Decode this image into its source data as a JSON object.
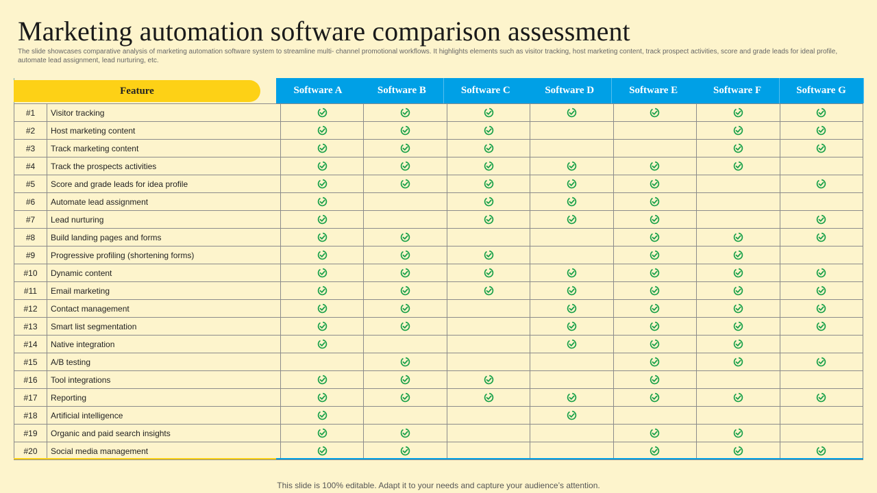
{
  "title": "Marketing automation software comparison assessment",
  "subtitle": "The slide showcases comparative analysis of marketing automation  software system to streamline multi- channel promotional workflows. It highlights elements such as visitor tracking, host marketing content, track prospect activities, score and grade leads for ideal profile, automate lead assignment, lead nurturing, etc.",
  "footer": "This slide is 100% editable. Adapt it to your needs and capture your audience’s attention.",
  "colors": {
    "feature_header": "#fdd116",
    "software_header": "#00a0e6",
    "check": "#1aa14a",
    "background": "#fdf4cc"
  },
  "check_icon": "circle-check-icon",
  "table": {
    "feature_header": "Feature",
    "software": [
      "Software A",
      "Software B",
      "Software C",
      "Software D",
      "Software E",
      "Software F",
      "Software G"
    ],
    "rows": [
      {
        "num": "#1",
        "feature": "Visitor tracking",
        "checks": [
          1,
          1,
          1,
          1,
          1,
          1,
          1
        ]
      },
      {
        "num": "#2",
        "feature": "Host marketing content",
        "checks": [
          1,
          1,
          1,
          0,
          0,
          1,
          1
        ]
      },
      {
        "num": "#3",
        "feature": "Track marketing content",
        "checks": [
          1,
          1,
          1,
          0,
          0,
          1,
          1
        ]
      },
      {
        "num": "#4",
        "feature": "Track the prospects activities",
        "checks": [
          1,
          1,
          1,
          1,
          1,
          1,
          0
        ]
      },
      {
        "num": "#5",
        "feature": "Score and grade leads for idea profile",
        "checks": [
          1,
          1,
          1,
          1,
          1,
          0,
          1
        ]
      },
      {
        "num": "#6",
        "feature": "Automate lead assignment",
        "checks": [
          1,
          0,
          1,
          1,
          1,
          0,
          0
        ]
      },
      {
        "num": "#7",
        "feature": "Lead nurturing",
        "checks": [
          1,
          0,
          1,
          1,
          1,
          0,
          1
        ]
      },
      {
        "num": "#8",
        "feature": "Build landing pages and forms",
        "checks": [
          1,
          1,
          0,
          0,
          1,
          1,
          1
        ]
      },
      {
        "num": "#9",
        "feature": "Progressive profiling (shortening forms)",
        "checks": [
          1,
          1,
          1,
          0,
          1,
          1,
          0
        ]
      },
      {
        "num": "#10",
        "feature": "Dynamic content",
        "checks": [
          1,
          1,
          1,
          1,
          1,
          1,
          1
        ]
      },
      {
        "num": "#11",
        "feature": "Email marketing",
        "checks": [
          1,
          1,
          1,
          1,
          1,
          1,
          1
        ]
      },
      {
        "num": "#12",
        "feature": "Contact management",
        "checks": [
          1,
          1,
          0,
          1,
          1,
          1,
          1
        ]
      },
      {
        "num": "#13",
        "feature": "Smart list segmentation",
        "checks": [
          1,
          1,
          0,
          1,
          1,
          1,
          1
        ]
      },
      {
        "num": "#14",
        "feature": "Native integration",
        "checks": [
          1,
          0,
          0,
          1,
          1,
          1,
          0
        ]
      },
      {
        "num": "#15",
        "feature": "A/B testing",
        "checks": [
          0,
          1,
          0,
          0,
          1,
          1,
          1
        ]
      },
      {
        "num": "#16",
        "feature": "Tool integrations",
        "checks": [
          1,
          1,
          1,
          0,
          1,
          0,
          0
        ]
      },
      {
        "num": "#17",
        "feature": "Reporting",
        "checks": [
          1,
          1,
          1,
          1,
          1,
          1,
          1
        ]
      },
      {
        "num": "#18",
        "feature": "Artificial intelligence",
        "checks": [
          1,
          0,
          0,
          1,
          0,
          0,
          0
        ]
      },
      {
        "num": "#19",
        "feature": "Organic and paid search insights",
        "checks": [
          1,
          1,
          0,
          0,
          1,
          1,
          0
        ]
      },
      {
        "num": "#20",
        "feature": "Social media management",
        "checks": [
          1,
          1,
          0,
          0,
          1,
          1,
          1
        ]
      }
    ]
  }
}
